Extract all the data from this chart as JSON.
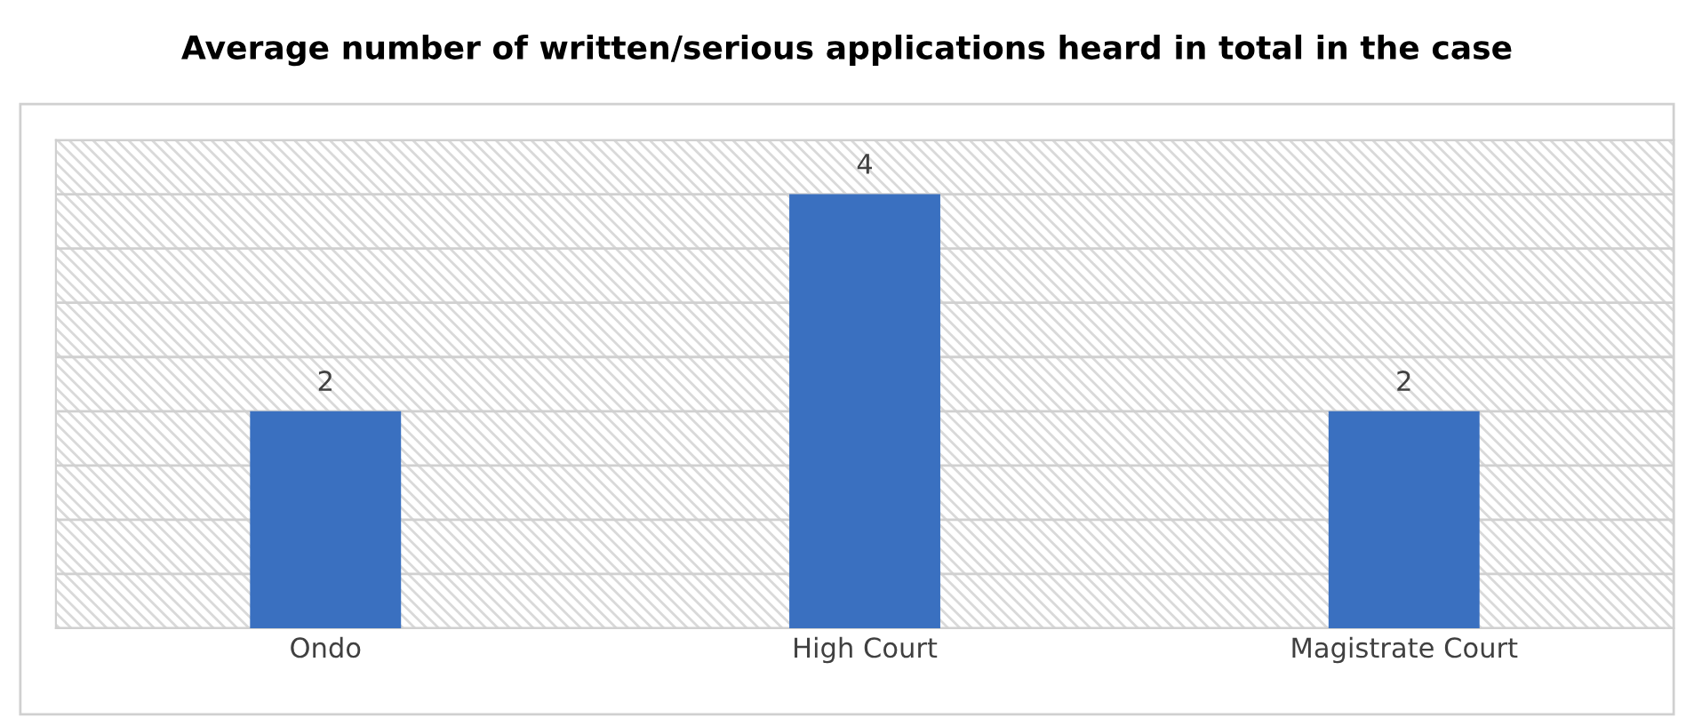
{
  "chart_data": {
    "type": "bar",
    "title": "Average number of written/serious applications heard in total in the case",
    "categories": [
      "Ondo",
      "High Court",
      "Magistrate Court"
    ],
    "values": [
      2,
      4,
      2
    ],
    "color": "#3a70c0",
    "data_labels": true,
    "ylim": [
      0,
      4.5
    ],
    "yticks": [
      {
        "value": 0,
        "label": null
      },
      {
        "value": 0.5,
        "label": null
      },
      {
        "value": 1,
        "label": null
      },
      {
        "value": 1.5,
        "label": null
      },
      {
        "value": 2,
        "label": null
      },
      {
        "value": 2.5,
        "label": null
      },
      {
        "value": 3,
        "label": null
      },
      {
        "value": 3.5,
        "label": null
      },
      {
        "value": 4,
        "label": null
      },
      {
        "value": 4.5,
        "label": null
      }
    ],
    "tick_labels": "x",
    "grid": "y"
  }
}
